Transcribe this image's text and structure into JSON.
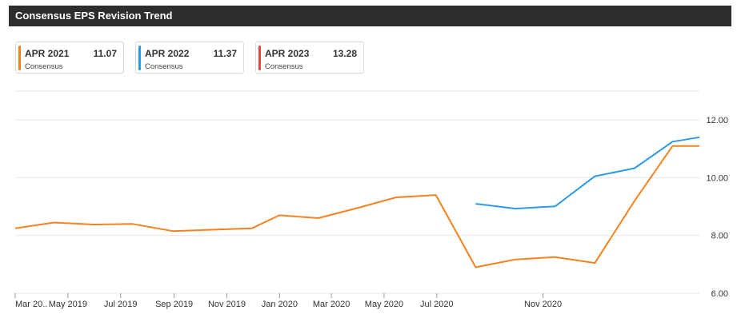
{
  "header": {
    "title": "Consensus EPS Revision Trend"
  },
  "legend": [
    {
      "label": "APR 2021",
      "value": "11.07",
      "sub": "Consensus",
      "color": "#f5821f"
    },
    {
      "label": "APR 2022",
      "value": "11.37",
      "sub": "Consensus",
      "color": "#2b9be8"
    },
    {
      "label": "APR 2023",
      "value": "13.28",
      "sub": "Consensus",
      "color": "#e8473c"
    }
  ],
  "chart_data": {
    "type": "line",
    "x_tick_labels": [
      "Mar 20..",
      "May 2019",
      "Jul 2019",
      "Sep 2019",
      "Nov 2019",
      "Jan 2020",
      "Mar 2020",
      "May 2020",
      "Jul 2020",
      "Nov 2020"
    ],
    "y_tick_labels": [
      "12.00",
      "10.00",
      "8.00",
      "6.00"
    ],
    "ylim": [
      6.0,
      13.0
    ],
    "grid": true,
    "series": [
      {
        "name": "APR 2021",
        "color": "#f5821f",
        "points": [
          [
            "2019-03-01",
            8.25
          ],
          [
            "2019-04-15",
            8.45
          ],
          [
            "2019-05-31",
            8.38
          ],
          [
            "2019-07-15",
            8.4
          ],
          [
            "2019-08-31",
            8.15
          ],
          [
            "2019-10-15",
            8.2
          ],
          [
            "2019-11-30",
            8.25
          ],
          [
            "2020-01-01",
            8.7
          ],
          [
            "2020-02-15",
            8.6
          ],
          [
            "2020-03-31",
            8.95
          ],
          [
            "2020-05-15",
            9.32
          ],
          [
            "2020-06-30",
            9.4
          ],
          [
            "2020-08-15",
            6.9
          ],
          [
            "2020-09-30",
            7.17
          ],
          [
            "2020-11-15",
            7.25
          ],
          [
            "2020-12-31",
            7.05
          ],
          [
            "2021-02-15",
            9.2
          ],
          [
            "2021-03-31",
            11.1
          ],
          [
            "2021-05-01",
            11.1
          ]
        ]
      },
      {
        "name": "APR 2022",
        "color": "#2b9be8",
        "points": [
          [
            "2020-08-15",
            9.1
          ],
          [
            "2020-09-30",
            8.93
          ],
          [
            "2020-11-15",
            9.01
          ],
          [
            "2020-12-31",
            10.05
          ],
          [
            "2021-02-15",
            10.33
          ],
          [
            "2021-03-31",
            11.25
          ],
          [
            "2021-05-01",
            11.4
          ]
        ]
      }
    ]
  }
}
